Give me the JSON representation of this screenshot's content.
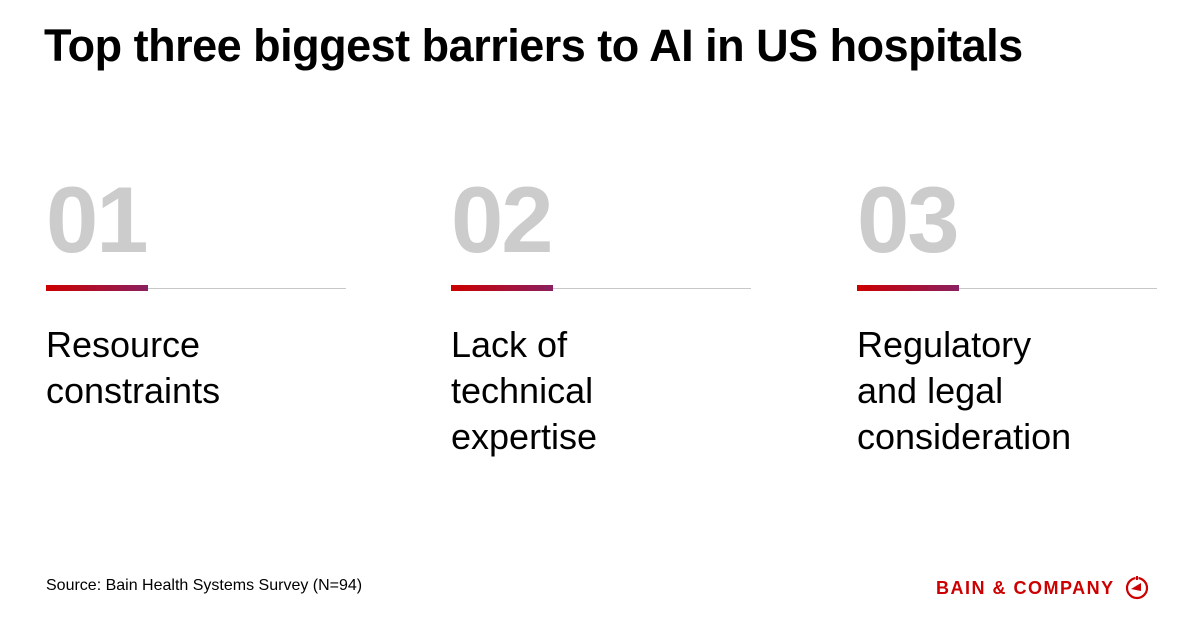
{
  "title": "Top three biggest barriers to AI in US hospitals",
  "barriers": [
    {
      "number": "01",
      "label": "Resource\nconstraints"
    },
    {
      "number": "02",
      "label": "Lack of\ntechnical\nexpertise"
    },
    {
      "number": "03",
      "label": "Regulatory\nand legal\nconsideration"
    }
  ],
  "source": "Source: Bain Health Systems Survey (N=94)",
  "logo": {
    "text": "BAIN & COMPANY",
    "icon": "bain-compass-icon"
  },
  "colors": {
    "accent_start": "#cc0000",
    "accent_end": "#8a2060",
    "number_gray": "#cccccc"
  }
}
